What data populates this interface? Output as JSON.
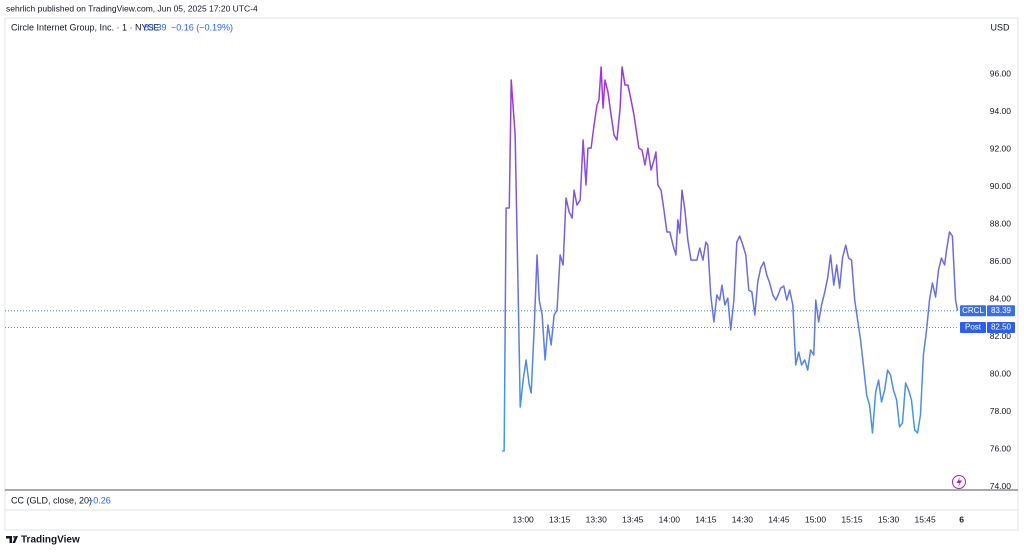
{
  "header": {
    "text": "sehrlich published on TradingView.com, Jun 05, 2025 17:20 UTC-4"
  },
  "legend": {
    "symbol": "Circle Internet Group, Inc. · 1 · NYSE",
    "last": 83.39,
    "change": "−0.16 (−0.19%)"
  },
  "currency": "USD",
  "indicator": {
    "name": "CC (GLD, close, 20)",
    "value": "−0.26"
  },
  "footer": {
    "brand": "TradingView"
  },
  "chart_data": {
    "type": "line",
    "gradient": [
      "#a52fe0",
      "#3aa2e6"
    ],
    "xlim": [
      567.3,
      958.5
    ],
    "ylim": [
      73.84,
      97.98
    ],
    "xticks": [
      {
        "value": 780,
        "label": "13:00"
      },
      {
        "value": 795,
        "label": "13:15"
      },
      {
        "value": 810,
        "label": "13:30"
      },
      {
        "value": 825,
        "label": "13:45"
      },
      {
        "value": 840,
        "label": "14:00"
      },
      {
        "value": 855,
        "label": "14:15"
      },
      {
        "value": 870,
        "label": "14:30"
      },
      {
        "value": 885,
        "label": "14:45"
      },
      {
        "value": 900,
        "label": "15:00"
      },
      {
        "value": 915,
        "label": "15:15"
      },
      {
        "value": 930,
        "label": "15:30"
      },
      {
        "value": 945,
        "label": "15:45"
      },
      {
        "value": 960,
        "label": "6"
      }
    ],
    "yticks": [
      {
        "value": 74,
        "label": "74.00"
      },
      {
        "value": 76,
        "label": "76.00"
      },
      {
        "value": 78,
        "label": "78.00"
      },
      {
        "value": 80,
        "label": "80.00"
      },
      {
        "value": 82,
        "label": "82.00"
      },
      {
        "value": 84,
        "label": "84.00"
      },
      {
        "value": 86,
        "label": "86.00"
      },
      {
        "value": 88,
        "label": "88.00"
      },
      {
        "value": 90,
        "label": "90.00"
      },
      {
        "value": 92,
        "label": "92.00"
      },
      {
        "value": 94,
        "label": "94.00"
      },
      {
        "value": 96,
        "label": "96.00"
      }
    ],
    "price_lines": [
      {
        "name": "CRCL",
        "value": 83.39,
        "color": "#3a6fe0"
      },
      {
        "name": "Post",
        "value": 82.5,
        "value_label": "82.50",
        "color": "#2f5fe6"
      }
    ],
    "series": [
      {
        "x": [
          771.4,
          772.2,
          773.0,
          774.3,
          775.1,
          776.7,
          778.0,
          778.8,
          780.0,
          781.2,
          782.5,
          783.3,
          784.5,
          785.7,
          786.6,
          787.8,
          789.0,
          790.2,
          791.5,
          792.7,
          793.9,
          795.2,
          796.4,
          797.6,
          798.9,
          800.1,
          800.9,
          802.1,
          803.4,
          804.6,
          805.8,
          806.6,
          807.9,
          809.1,
          810.3,
          811.1,
          812.0,
          812.8,
          813.6,
          814.8,
          816.1,
          817.3,
          818.5,
          819.8,
          820.6,
          821.8,
          823.0,
          824.3,
          825.5,
          826.7,
          827.5,
          828.8,
          830.0,
          831.2,
          832.5,
          833.7,
          834.5,
          835.3,
          836.6,
          837.8,
          839.0,
          840.2,
          841.5,
          842.7,
          843.5,
          844.3,
          845.2,
          846.4,
          847.6,
          848.9,
          849.7,
          851.3,
          852.5,
          853.8,
          855.0,
          855.8,
          857.0,
          858.3,
          859.5,
          860.7,
          861.6,
          862.8,
          864.0,
          865.2,
          866.5,
          867.7,
          868.9,
          870.2,
          871.4,
          872.6,
          873.9,
          875.1,
          876.3,
          877.5,
          878.8,
          880.0,
          881.2,
          882.5,
          883.7,
          884.5,
          885.7,
          887.0,
          888.2,
          889.4,
          890.7,
          891.9,
          893.1,
          894.3,
          895.6,
          896.8,
          898.0,
          899.3,
          900.1,
          901.3,
          902.5,
          903.8,
          905.0,
          906.2,
          907.5,
          908.7,
          909.9,
          911.1,
          912.4,
          913.6,
          914.8,
          916.1,
          917.3,
          918.5,
          919.8,
          921.0,
          922.2,
          923.4,
          924.7,
          925.9,
          927.1,
          928.4,
          929.6,
          930.8,
          932.0,
          933.3,
          934.5,
          935.7,
          937.0,
          938.2,
          939.4,
          940.7,
          941.9,
          943.1,
          944.3,
          945.6,
          946.8,
          948.0,
          949.3,
          950.5,
          951.7,
          953.0,
          953.8,
          955.0,
          956.2,
          957.5,
          958.3
        ],
        "values": [
          75.92,
          75.92,
          88.87,
          88.87,
          95.69,
          92.76,
          83.96,
          78.26,
          79.7,
          80.77,
          79.43,
          79.01,
          82.37,
          86.36,
          83.96,
          83.16,
          80.77,
          82.63,
          81.57,
          83.16,
          83.43,
          86.36,
          85.83,
          89.4,
          88.65,
          88.33,
          89.82,
          89.02,
          89.29,
          92.49,
          90.09,
          92.06,
          92.06,
          93.29,
          94.35,
          94.62,
          96.38,
          94.19,
          95.69,
          95.05,
          93.82,
          92.76,
          92.49,
          94.19,
          96.38,
          95.42,
          95.42,
          94.62,
          93.82,
          92.76,
          92.06,
          91.96,
          91.16,
          92.06,
          90.89,
          91.42,
          91.85,
          90.09,
          89.82,
          88.76,
          87.59,
          87.59,
          86.89,
          86.36,
          88.23,
          87.53,
          89.82,
          88.76,
          87.16,
          86.09,
          86.09,
          86.09,
          86.73,
          86.09,
          87.05,
          86.89,
          84.23,
          82.79,
          84.23,
          83.96,
          84.76,
          83.7,
          84.07,
          82.37,
          83.96,
          87.05,
          87.37,
          86.89,
          86.36,
          84.5,
          84.39,
          83.16,
          84.92,
          85.67,
          85.99,
          85.3,
          84.87,
          84.23,
          83.96,
          84.18,
          84.6,
          84.71,
          83.96,
          84.5,
          83.7,
          80.5,
          81.19,
          80.5,
          80.77,
          80.23,
          81.3,
          81.03,
          83.96,
          82.79,
          83.7,
          84.39,
          85.14,
          86.36,
          84.76,
          85.83,
          84.6,
          86.2,
          86.89,
          86.2,
          86.09,
          83.96,
          82.9,
          81.83,
          80.34,
          78.9,
          78.37,
          76.88,
          79.06,
          79.7,
          78.53,
          79.17,
          80.23,
          79.97,
          79.17,
          78.64,
          77.2,
          77.41,
          79.54,
          79.17,
          78.64,
          77.04,
          76.88,
          77.84,
          81.03,
          82.37,
          83.96,
          84.87,
          84.12,
          85.56,
          86.2,
          85.83,
          86.63,
          87.59,
          87.37,
          83.96,
          83.39
        ]
      }
    ]
  }
}
